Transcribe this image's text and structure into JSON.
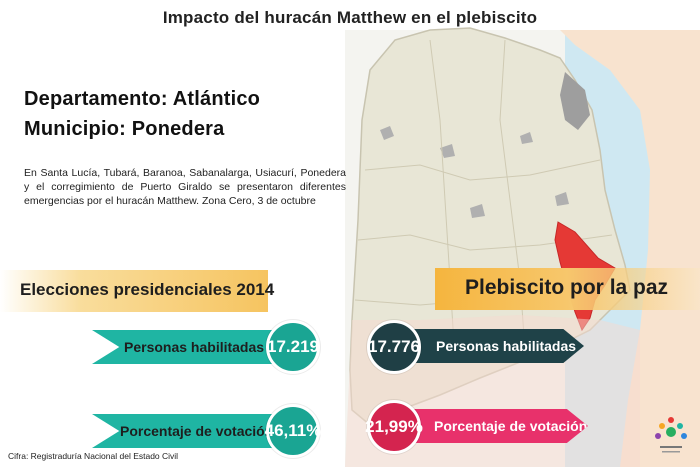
{
  "header": {
    "title": "Impacto del huracán Matthew en el plebiscito"
  },
  "location": {
    "department": "Departamento: Atlántico",
    "municipality": "Municipio: Ponedera",
    "description": "En Santa Lucía, Tubará, Baranoa, Sabanalarga, Usiacurí, Ponedera y el corregimiento de Puerto Giraldo se presentaron diferentes emergencias por el huracán Matthew. Zona Cero, 3 de octubre"
  },
  "presidential_2014": {
    "heading": "Elecciones presidenciales 2014",
    "eligible_label": "Personas habilitadas",
    "eligible_value": "17.219",
    "turnout_label": "Porcentaje de votación",
    "turnout_value": "46,11%"
  },
  "plebiscite": {
    "heading": "Plebiscito por la paz",
    "eligible_label": "Personas habilitadas",
    "eligible_value": "17.776",
    "turnout_label": "Porcentaje de votación",
    "turnout_value": "21,99%"
  },
  "footer": {
    "source": "Cifra: Registraduría Nacional del Estado Civil"
  },
  "colors": {
    "teal": "#1fb5a3",
    "dark_teal": "#1f4248",
    "pink": "#e8316b",
    "highlight_municipality": "#e53935",
    "band_orange": "#f6c460"
  }
}
